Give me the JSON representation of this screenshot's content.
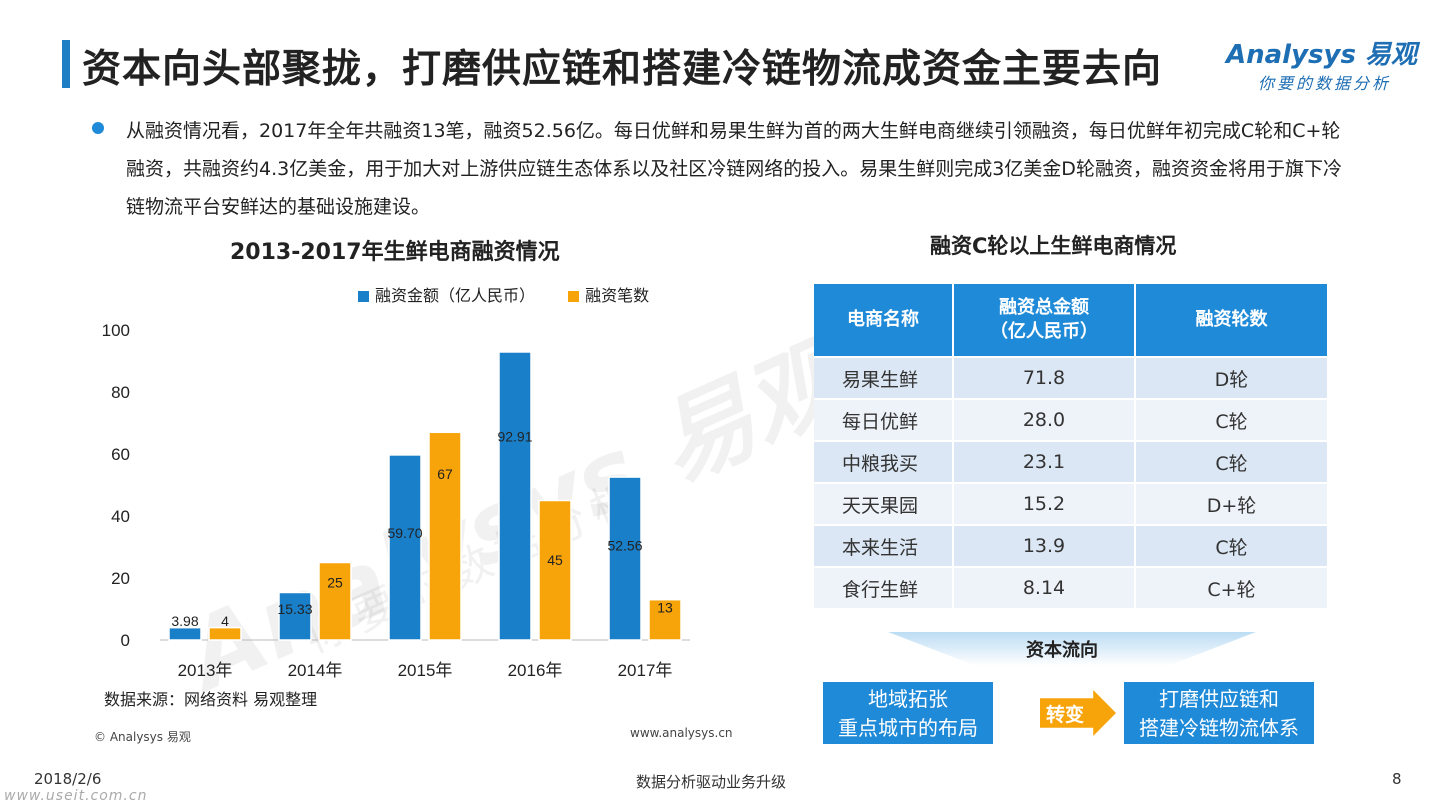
{
  "header": {
    "title": "资本向头部聚拢，打磨供应链和搭建冷链物流成资金主要去向",
    "logo_main": "Analysys 易观",
    "logo_sub": "你要的数据分析",
    "accent_color": "#1f7fc4"
  },
  "intro": {
    "text": "从融资情况看，2017年全年共融资13笔，融资52.56亿。每日优鲜和易果生鲜为首的两大生鲜电商继续引领融资，每日优鲜年初完成C轮和C+轮融资，共融资约4.3亿美金，用于加大对上游供应链生态体系以及社区冷链网络的投入。易果生鲜则完成3亿美金D轮融资，融资资金将用于旗下冷链物流平台安鲜达的基础设施建设。"
  },
  "chart_data": {
    "type": "bar",
    "title": "2013-2017年生鲜电商融资情况",
    "categories": [
      "2013年",
      "2014年",
      "2015年",
      "2016年",
      "2017年"
    ],
    "series": [
      {
        "name": "融资金额（亿人民币）",
        "values": [
          3.98,
          15.33,
          59.7,
          92.91,
          52.56
        ],
        "labels": [
          "3.98",
          "15.33",
          "59.70",
          "92.91",
          "52.56"
        ],
        "color": "#1a7fc9"
      },
      {
        "name": "融资笔数",
        "values": [
          4,
          25,
          67,
          45,
          13
        ],
        "labels": [
          "4",
          "25",
          "67",
          "45",
          "13"
        ],
        "color": "#f7a30a"
      }
    ],
    "ylim": [
      0,
      100
    ],
    "yticks": [
      "0",
      "20",
      "40",
      "60",
      "80",
      "100"
    ],
    "legend_position": "top",
    "grid": false
  },
  "chart_notes": {
    "source": "数据来源：网络资料 易观整理",
    "copyright": "© Analysys 易观",
    "url": "www.analysys.cn"
  },
  "watermark": {
    "main": "Analysys 易观",
    "sub": "你要的数据分析"
  },
  "table": {
    "title": "融资C轮以上生鲜电商情况",
    "headers": [
      "电商名称",
      "融资总金额",
      "（亿人民币）",
      "融资轮数"
    ],
    "rows": [
      {
        "name": "易果生鲜",
        "amount": "71.8",
        "round": "D轮"
      },
      {
        "name": "每日优鲜",
        "amount": "28.0",
        "round": "C轮"
      },
      {
        "name": "中粮我买",
        "amount": "23.1",
        "round": "C轮"
      },
      {
        "name": "天天果园",
        "amount": "15.2",
        "round": "D+轮"
      },
      {
        "name": "本来生活",
        "amount": "13.9",
        "round": "C轮"
      },
      {
        "name": "食行生鲜",
        "amount": "8.14",
        "round": "C+轮"
      }
    ]
  },
  "flow": {
    "label": "资本流向",
    "left": [
      "地域拓张",
      "重点城市的布局"
    ],
    "arrow": "转变",
    "right": [
      "打磨供应链和",
      "搭建冷链物流体系"
    ]
  },
  "footer": {
    "date": "2018/2/6",
    "center": "数据分析驱动业务升级",
    "page": "8",
    "watermark": "www.useit.com.cn"
  }
}
